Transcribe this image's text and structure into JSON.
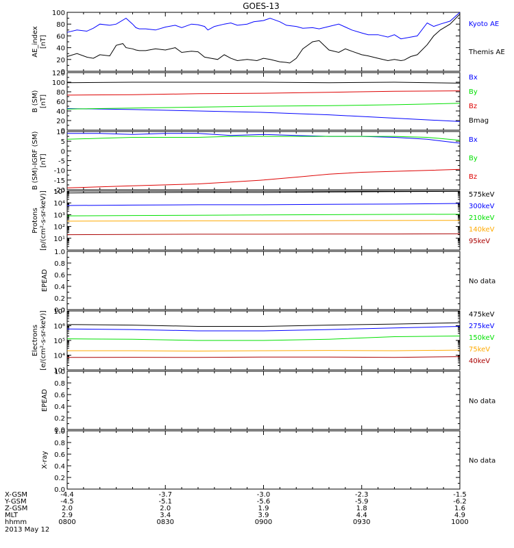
{
  "figure": {
    "title": "GOES-13",
    "colors": {
      "black": "#000000",
      "blue": "#0000ff",
      "red": "#dd0000",
      "green": "#00e000",
      "orange": "#ffaa00",
      "darkred": "#aa0000"
    }
  },
  "chart_data": [
    {
      "id": "ae",
      "type": "line",
      "ylabel": [
        "AE_index",
        "[nT]"
      ],
      "ylim": [
        0,
        100
      ],
      "yticks": [
        "0",
        "20",
        "40",
        "60",
        "80",
        "100"
      ],
      "yminor": 2,
      "series": [
        {
          "name": "Kyoto AE",
          "color": "#0000ff",
          "x": [
            0,
            3,
            6,
            8,
            10,
            13,
            15,
            18,
            20,
            21,
            22,
            24,
            27,
            30,
            33,
            35,
            38,
            40,
            42,
            43,
            44,
            45,
            48,
            50,
            52,
            55,
            57,
            60,
            62,
            63,
            65,
            67,
            70,
            72,
            75,
            77,
            80,
            83,
            85,
            87,
            90,
            92,
            95,
            98,
            100,
            102,
            105,
            107,
            110,
            112,
            114,
            117,
            120
          ],
          "y": [
            66,
            70,
            68,
            73,
            80,
            78,
            80,
            90,
            80,
            74,
            72,
            72,
            70,
            75,
            78,
            74,
            80,
            79,
            76,
            70,
            73,
            76,
            80,
            82,
            78,
            80,
            84,
            86,
            90,
            88,
            84,
            78,
            76,
            73,
            74,
            72,
            76,
            80,
            75,
            70,
            65,
            62,
            62,
            58,
            62,
            55,
            58,
            60,
            82,
            76,
            80,
            85,
            100
          ]
        },
        {
          "name": "Themis AE",
          "color": "#000000",
          "x": [
            0,
            3,
            6,
            8,
            10,
            13,
            15,
            17,
            18,
            20,
            21,
            22,
            24,
            27,
            30,
            33,
            35,
            38,
            40,
            42,
            44,
            46,
            48,
            50,
            52,
            55,
            58,
            60,
            62,
            65,
            67,
            68,
            70,
            72,
            75,
            77,
            80,
            83,
            85,
            87,
            90,
            92,
            95,
            98,
            100,
            102,
            103,
            105,
            107,
            110,
            112,
            114,
            117,
            120
          ],
          "y": [
            25,
            30,
            24,
            22,
            28,
            26,
            44,
            47,
            40,
            38,
            36,
            35,
            35,
            38,
            36,
            40,
            32,
            34,
            33,
            24,
            22,
            20,
            28,
            22,
            18,
            20,
            18,
            22,
            20,
            16,
            15,
            14,
            22,
            38,
            50,
            52,
            36,
            32,
            38,
            34,
            28,
            26,
            22,
            18,
            20,
            18,
            19,
            25,
            28,
            45,
            60,
            70,
            80,
            97
          ]
        }
      ]
    },
    {
      "id": "bsm",
      "type": "line",
      "ylabel": [
        "B (SM)",
        "[nT]"
      ],
      "ylim": [
        0,
        120
      ],
      "yticks": [
        "0",
        "20",
        "40",
        "60",
        "80",
        "100",
        "120"
      ],
      "yminor": 2,
      "series": [
        {
          "name": "Bx",
          "color": "#0000ff",
          "x": [
            0,
            20,
            40,
            60,
            80,
            100,
            120
          ],
          "y": [
            45,
            43,
            40,
            37,
            32,
            25,
            18
          ]
        },
        {
          "name": "By",
          "color": "#00e000",
          "x": [
            0,
            20,
            40,
            60,
            80,
            100,
            120
          ],
          "y": [
            44,
            46,
            48,
            50,
            51,
            53,
            56
          ]
        },
        {
          "name": "Bz",
          "color": "#dd0000",
          "x": [
            0,
            20,
            40,
            60,
            80,
            100,
            120
          ],
          "y": [
            73,
            74,
            76,
            77,
            79,
            81,
            82
          ]
        },
        {
          "name": "Bmag",
          "color": "#000000",
          "x": [
            0,
            20,
            40,
            60,
            80,
            100,
            120
          ],
          "y": [
            99,
            100,
            100,
            100,
            99,
            100,
            98
          ]
        }
      ]
    },
    {
      "id": "bres",
      "type": "line",
      "ylabel": [
        "B (SM)-IGRF (SM)",
        "[nT]"
      ],
      "ylim": [
        -20,
        10
      ],
      "yticks": [
        "-20",
        "-15",
        "-10",
        "-5",
        "0",
        "5",
        "10"
      ],
      "yminor": 2,
      "series": [
        {
          "name": "Bx",
          "color": "#0000ff",
          "x": [
            0,
            10,
            20,
            30,
            40,
            50,
            60,
            70,
            80,
            90,
            100,
            110,
            120
          ],
          "y": [
            9,
            9,
            8.5,
            9,
            9,
            8,
            8.5,
            8,
            7.5,
            7.5,
            7,
            6,
            4
          ]
        },
        {
          "name": "By",
          "color": "#00e000",
          "x": [
            0,
            10,
            20,
            30,
            40,
            50,
            60,
            70,
            80,
            90,
            100,
            110,
            120
          ],
          "y": [
            6,
            6.5,
            7,
            7,
            7,
            7.5,
            7.5,
            7.5,
            7.5,
            7.5,
            7.5,
            7,
            5.5
          ]
        },
        {
          "name": "Bz",
          "color": "#dd0000",
          "x": [
            0,
            10,
            20,
            30,
            40,
            50,
            60,
            70,
            80,
            90,
            100,
            110,
            120
          ],
          "y": [
            -19,
            -18.5,
            -18,
            -17.5,
            -17,
            -16,
            -15,
            -13.5,
            -12,
            -11,
            -10.5,
            -10,
            -9.5
          ]
        }
      ]
    },
    {
      "id": "protons",
      "type": "line",
      "ylog": true,
      "ylabel": [
        "Protons",
        "[p/(cm²-s-sr-keV)]"
      ],
      "ylim": [
        1,
        100000
      ],
      "yticks": [
        "10¹",
        "10²",
        "10³",
        "10⁴",
        "10⁵"
      ],
      "yticks_values": [
        10,
        100,
        1000,
        10000,
        100000
      ],
      "series": [
        {
          "name": "575keV",
          "color": "#000000",
          "x": [
            0,
            20,
            40,
            60,
            80,
            100,
            120
          ],
          "y": [
            70000,
            75000,
            80000,
            78000,
            85000,
            90000,
            95000
          ]
        },
        {
          "name": "300keV",
          "color": "#0000ff",
          "x": [
            0,
            20,
            40,
            60,
            80,
            100,
            120
          ],
          "y": [
            6000,
            6500,
            7000,
            7000,
            7500,
            8000,
            9000
          ]
        },
        {
          "name": "210keV",
          "color": "#00e000",
          "x": [
            0,
            20,
            40,
            60,
            80,
            100,
            120
          ],
          "y": [
            800,
            850,
            900,
            950,
            1000,
            1050,
            1100
          ]
        },
        {
          "name": "140keV",
          "color": "#ffaa00",
          "x": [
            0,
            20,
            40,
            60,
            80,
            100,
            120
          ],
          "y": [
            280,
            290,
            300,
            300,
            310,
            320,
            330
          ]
        },
        {
          "name": "95keV",
          "color": "#aa0000",
          "x": [
            0,
            20,
            40,
            60,
            80,
            100,
            120
          ],
          "y": [
            20,
            21,
            22,
            22,
            23,
            23,
            24
          ]
        }
      ]
    },
    {
      "id": "epead1",
      "type": "line",
      "ylabel": [
        "EPEAD"
      ],
      "ylim": [
        0,
        1
      ],
      "yticks": [
        "0.0",
        "0.2",
        "0.4",
        "0.6",
        "0.8",
        "1.0"
      ],
      "yminor": 2,
      "nodata": "No data",
      "series": []
    },
    {
      "id": "electrons",
      "type": "line",
      "ylog": true,
      "ylabel": [
        "Electrons",
        "[e/(cm²-s-sr-keV)]"
      ],
      "ylim": [
        1000,
        10000000
      ],
      "yticks": [
        "10³",
        "10⁴",
        "10⁵",
        "10⁶",
        "10⁷"
      ],
      "yticks_values": [
        1000,
        10000,
        100000,
        1000000,
        10000000
      ],
      "series": [
        {
          "name": "475keV",
          "color": "#000000",
          "x": [
            0,
            20,
            40,
            60,
            80,
            100,
            120
          ],
          "y": [
            1200000,
            1100000,
            900000,
            900000,
            1100000,
            1300000,
            1600000
          ]
        },
        {
          "name": "275keV",
          "color": "#0000ff",
          "x": [
            0,
            20,
            40,
            60,
            80,
            100,
            120
          ],
          "y": [
            600000,
            550000,
            450000,
            450000,
            550000,
            700000,
            900000
          ]
        },
        {
          "name": "150keV",
          "color": "#00e000",
          "x": [
            0,
            20,
            40,
            60,
            80,
            100,
            120
          ],
          "y": [
            130000,
            120000,
            100000,
            100000,
            120000,
            180000,
            200000
          ]
        },
        {
          "name": "75keV",
          "color": "#ffaa00",
          "x": [
            0,
            20,
            40,
            60,
            80,
            100,
            120
          ],
          "y": [
            20000,
            20000,
            19000,
            20000,
            21000,
            20000,
            22000
          ]
        },
        {
          "name": "40keV",
          "color": "#aa0000",
          "x": [
            0,
            20,
            40,
            60,
            80,
            100,
            120
          ],
          "y": [
            7000,
            7200,
            7000,
            7500,
            7500,
            7000,
            8000
          ]
        }
      ]
    },
    {
      "id": "epead2",
      "type": "line",
      "ylabel": [
        "EPEAD"
      ],
      "ylim": [
        0,
        1
      ],
      "yticks": [
        "0.0",
        "0.2",
        "0.4",
        "0.6",
        "0.8",
        "1.0"
      ],
      "yminor": 2,
      "nodata": "No data",
      "series": []
    },
    {
      "id": "xray",
      "type": "line",
      "ylabel": [
        "X-ray"
      ],
      "ylim": [
        0,
        1
      ],
      "yticks": [
        "0.0",
        "0.2",
        "0.4",
        "0.6",
        "0.8",
        "1.0"
      ],
      "yminor": 2,
      "nodata": "No data",
      "series": []
    }
  ],
  "axis": {
    "xlim": [
      0,
      120
    ],
    "major": [
      0,
      30,
      60,
      90,
      120
    ],
    "minor_step": 5,
    "rows": [
      {
        "label": "X-GSM",
        "values": [
          "-4.4",
          "-3.7",
          "-3.0",
          "-2.3",
          "-1.5"
        ]
      },
      {
        "label": "Y-GSM",
        "values": [
          "-4.5",
          "-5.1",
          "-5.6",
          "-5.9",
          "-6.2"
        ]
      },
      {
        "label": "Z-GSM",
        "values": [
          "2.0",
          "2.0",
          "1.9",
          "1.8",
          "1.6"
        ]
      },
      {
        "label": "MLT",
        "values": [
          "2.9",
          "3.4",
          "3.9",
          "4.4",
          "4.9"
        ]
      },
      {
        "label": "hhmm",
        "values": [
          "0800",
          "0830",
          "0900",
          "0930",
          "1000"
        ]
      }
    ],
    "date": "2013 May 12"
  }
}
